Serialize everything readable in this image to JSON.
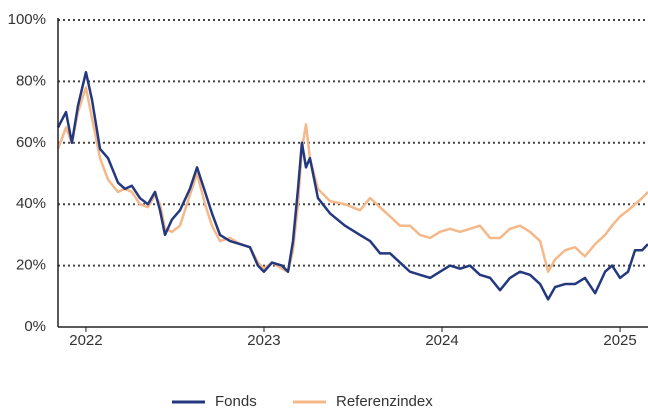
{
  "chart_data": {
    "type": "line",
    "x": [
      2021.843,
      2021.888,
      2021.921,
      2021.955,
      2022.0,
      2022.034,
      2022.079,
      2022.124,
      2022.18,
      2022.219,
      2022.258,
      2022.303,
      2022.348,
      2022.388,
      2022.416,
      2022.444,
      2022.483,
      2022.528,
      2022.584,
      2022.624,
      2022.669,
      2022.708,
      2022.753,
      2022.809,
      2022.865,
      2022.921,
      2022.966,
      2023.0,
      2023.045,
      2023.101,
      2023.135,
      2023.163,
      2023.191,
      2023.213,
      2023.236,
      2023.258,
      2023.303,
      2023.371,
      2023.455,
      2023.539,
      2023.596,
      2023.652,
      2023.708,
      2023.764,
      2023.82,
      2023.876,
      2023.933,
      2023.989,
      2024.045,
      2024.101,
      2024.157,
      2024.213,
      2024.27,
      2024.326,
      2024.382,
      2024.438,
      2024.494,
      2024.551,
      2024.596,
      2024.635,
      2024.691,
      2024.747,
      2024.803,
      2024.86,
      2024.916,
      2024.955,
      2025.0,
      2025.045,
      2025.084,
      2025.124,
      2025.157
    ],
    "series": [
      {
        "name": "Fonds",
        "color": "#24387f",
        "values": [
          65,
          70,
          60,
          72,
          83,
          74,
          58,
          55,
          47,
          45,
          46,
          42,
          40,
          44,
          38,
          30,
          35,
          38,
          45,
          52,
          44,
          37,
          30,
          28,
          27,
          26,
          20,
          18,
          21,
          20,
          18,
          28,
          45,
          60,
          52,
          55,
          42,
          37,
          33,
          30,
          28,
          24,
          24,
          21,
          18,
          17,
          16,
          18,
          20,
          19,
          20,
          17,
          16,
          12,
          16,
          18,
          17,
          14,
          9,
          13,
          14,
          14,
          16,
          11,
          18,
          20,
          16,
          18,
          25,
          25,
          27
        ]
      },
      {
        "name": "Referenzindex",
        "color": "#f4b889",
        "values": [
          58,
          65,
          60,
          70,
          78,
          68,
          55,
          48,
          44,
          45,
          44,
          40,
          39,
          43,
          40,
          32,
          31,
          33,
          43,
          50,
          40,
          33,
          28,
          29,
          27,
          26,
          21,
          19,
          21,
          19,
          18,
          25,
          40,
          58,
          66,
          55,
          45,
          41,
          40,
          38,
          42,
          39,
          36,
          33,
          33,
          30,
          29,
          31,
          32,
          31,
          32,
          33,
          29,
          29,
          32,
          33,
          31,
          28,
          18,
          22,
          25,
          26,
          23,
          27,
          30,
          33,
          36,
          38,
          40,
          42,
          44
        ]
      }
    ],
    "xlim": [
      2021.843,
      2025.157
    ],
    "xticks": [
      2022,
      2023,
      2024,
      2025
    ],
    "ylim": [
      0,
      100
    ],
    "yticks": [
      {
        "value": 0,
        "label": "0%"
      },
      {
        "value": 20,
        "label": "20%"
      },
      {
        "value": 40,
        "label": "40%"
      },
      {
        "value": 60,
        "label": "60%"
      },
      {
        "value": 80,
        "label": "80%"
      },
      {
        "value": 100,
        "label": "100%"
      }
    ],
    "grid": true
  }
}
